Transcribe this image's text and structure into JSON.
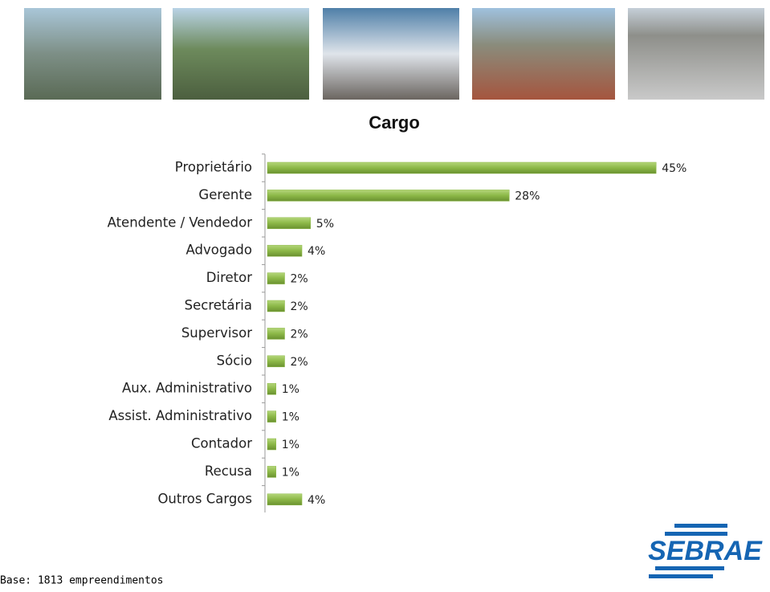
{
  "chart_data": {
    "type": "bar",
    "orientation": "horizontal",
    "title": "Cargo",
    "categories": [
      "Proprietário",
      "Gerente",
      "Atendente / Vendedor",
      "Advogado",
      "Diretor",
      "Secretária",
      "Supervisor",
      "Sócio",
      "Aux. Administrativo",
      "Assist. Administrativo",
      "Contador",
      "Recusa",
      "Outros Cargos"
    ],
    "values": [
      45,
      28,
      5,
      4,
      2,
      2,
      2,
      2,
      1,
      1,
      1,
      1,
      4
    ],
    "value_labels": [
      "45%",
      "28%",
      "5%",
      "4%",
      "2%",
      "2%",
      "2%",
      "2%",
      "1%",
      "1%",
      "1%",
      "1%",
      "4%"
    ],
    "color": "#8cb847"
  },
  "footer": {
    "note": "Base: 1813 empreendimentos",
    "logo": "SEBRAE"
  }
}
